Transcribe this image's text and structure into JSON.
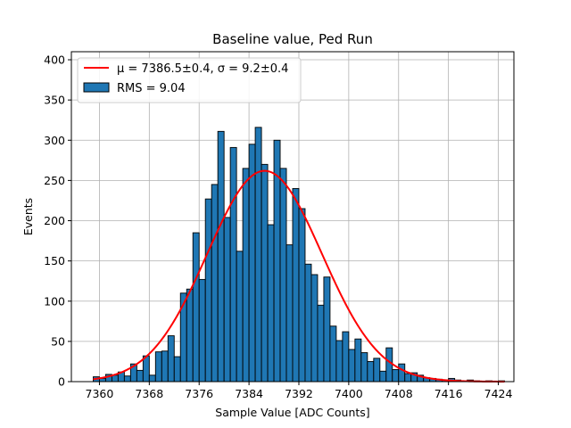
{
  "chart_data": {
    "type": "bar",
    "title": "Baseline value, Ped Run",
    "xlabel": "Sample Value [ADC Counts]",
    "ylabel": "Events",
    "xlim": [
      7355.5,
      7426.5
    ],
    "ylim": [
      0,
      410
    ],
    "xticks": [
      7360,
      7368,
      7376,
      7384,
      7392,
      7400,
      7408,
      7416,
      7424
    ],
    "yticks": [
      0,
      50,
      100,
      150,
      200,
      250,
      300,
      350,
      400
    ],
    "grid": true,
    "legend_position": "top-left",
    "histogram": {
      "name": "RMS = 9.04",
      "color": "#1f77b4",
      "edge_color": "#000000",
      "bin_start": 7359,
      "bin_width": 1,
      "counts": [
        6,
        4,
        9,
        8,
        12,
        7,
        22,
        14,
        32,
        8,
        37,
        38,
        57,
        31,
        110,
        115,
        185,
        127,
        227,
        245,
        311,
        204,
        291,
        162,
        265,
        295,
        316,
        270,
        195,
        300,
        265,
        170,
        240,
        215,
        146,
        133,
        95,
        130,
        69,
        51,
        62,
        40,
        53,
        36,
        25,
        29,
        13,
        42,
        15,
        22,
        10,
        11,
        8,
        5,
        4,
        3,
        2,
        4,
        2,
        1,
        2,
        1,
        0,
        1,
        0,
        1
      ]
    },
    "fit": {
      "name": "μ = 7386.5±0.4, σ = 9.2±0.4",
      "color": "#ff0000",
      "mu": 7386.5,
      "sigma": 9.2,
      "amplitude": 262,
      "x_range": [
        7359,
        7425
      ]
    }
  }
}
